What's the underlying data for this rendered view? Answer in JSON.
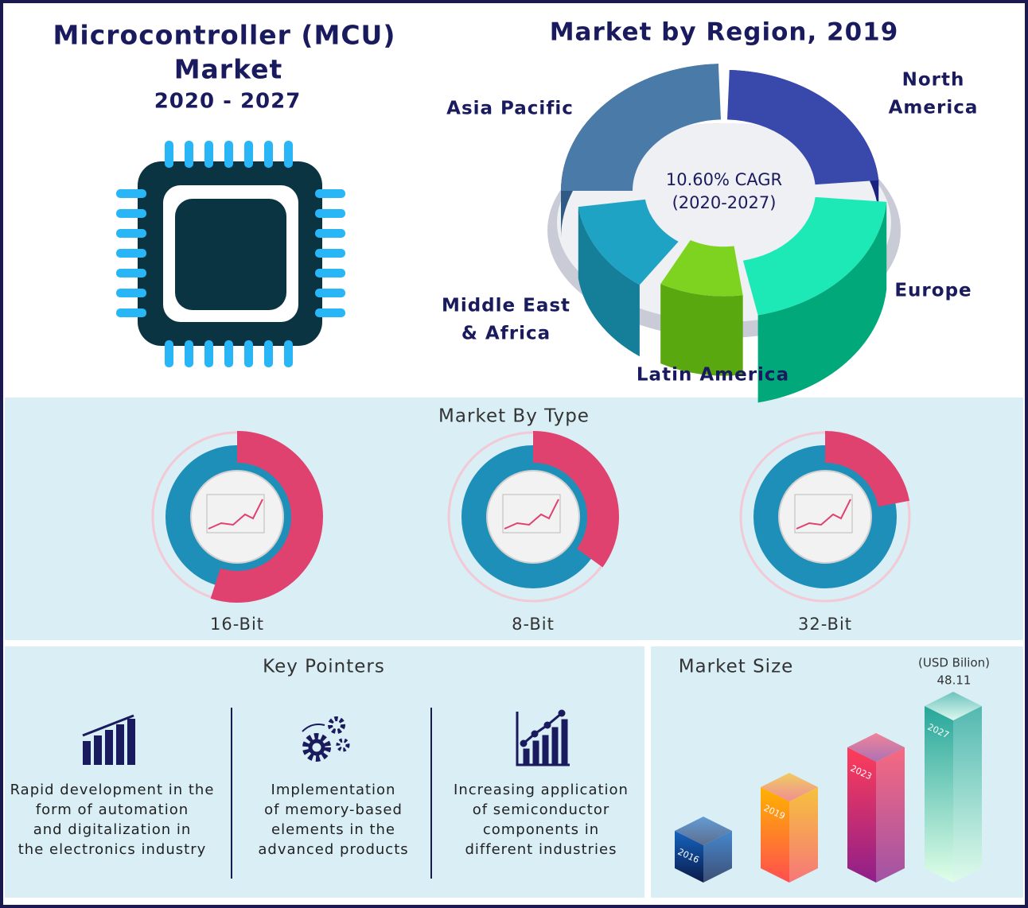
{
  "header": {
    "title_lines": [
      "Microcontroller (MCU)",
      "Market"
    ],
    "years": "2020 - 2027"
  },
  "region": {
    "title": "Market by Region, 2019",
    "center_lines": [
      "10.60% CAGR",
      "(2020-2027)"
    ],
    "labels": {
      "asia_pacific": [
        "Asia Pacific"
      ],
      "north_america": [
        "North",
        "America"
      ],
      "europe": [
        "Europe"
      ],
      "latin_america": [
        "Latin America"
      ],
      "middle_east_africa": [
        "Middle East",
        "& Africa"
      ]
    }
  },
  "type": {
    "title": "Market By Type",
    "items": [
      "16-Bit",
      "8-Bit",
      "32-Bit"
    ]
  },
  "key_pointers": {
    "title": "Key Pointers",
    "items": [
      [
        "Rapid development in the",
        "form of automation",
        "and digitalization in",
        "the electronics industry"
      ],
      [
        "Implementation",
        "of memory-based",
        "elements in the",
        "advanced products"
      ],
      [
        "Increasing application",
        "of semiconductor",
        "components in",
        "different industries"
      ]
    ]
  },
  "market_size": {
    "title": "Market Size",
    "unit": "(USD Bilion)",
    "value": "48.11",
    "years": [
      "2016",
      "2019",
      "2023",
      "2027"
    ]
  }
}
